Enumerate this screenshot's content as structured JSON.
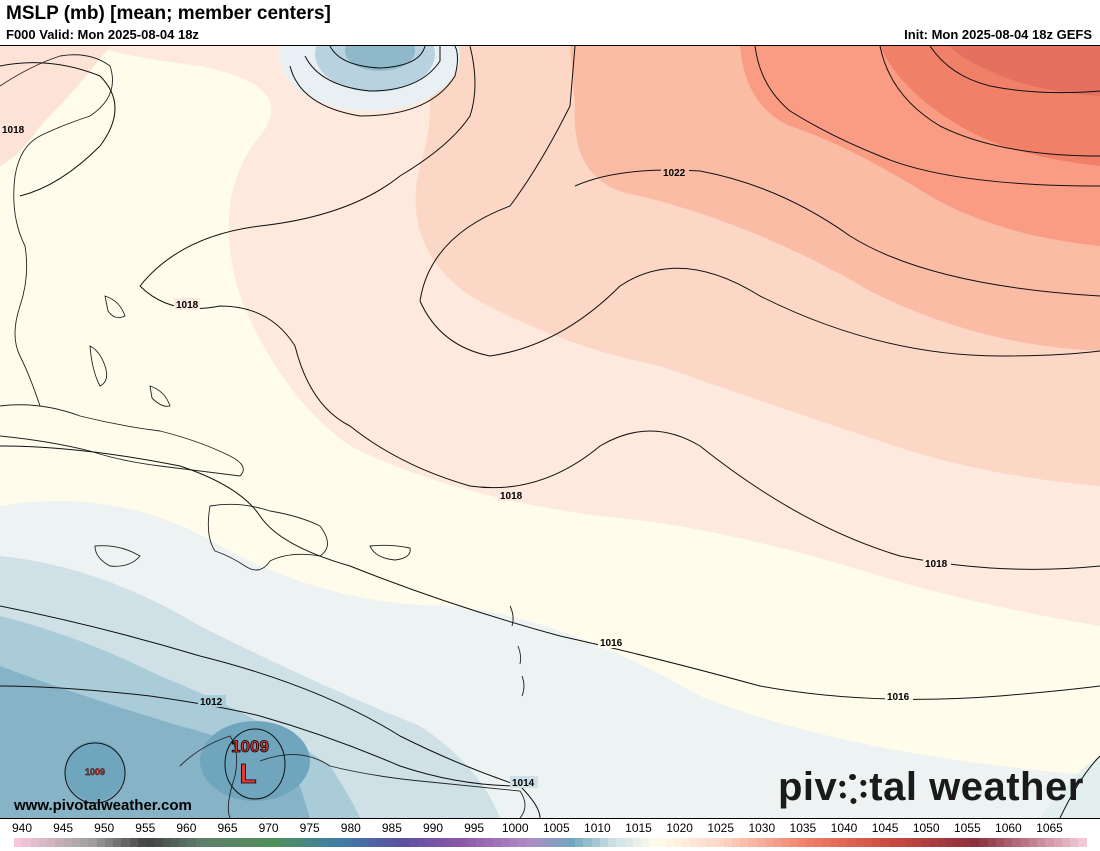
{
  "header": {
    "title": "MSLP (mb) [mean; member centers]",
    "valid": "F000 Valid: Mon 2025-08-04 18z",
    "init": "Init: Mon 2025-08-04 18z GEFS"
  },
  "map": {
    "isobar_labels": [
      "1018",
      "1018",
      "1022",
      "1018",
      "1018",
      "1016",
      "1016",
      "1012",
      "1014"
    ],
    "low_center": {
      "symbol": "L",
      "pressure": "1009"
    },
    "small_low_label": "1009",
    "colors": {
      "high": "#e4715f",
      "mid": "#fdd6c5",
      "neutral": "#fffdf0",
      "low": "#6fa6bd"
    }
  },
  "branding": {
    "website": "www.pivotalweather.com",
    "brand_left": "piv",
    "brand_right": "tal weather"
  },
  "colorbar": {
    "ticks": [
      "940",
      "945",
      "950",
      "955",
      "960",
      "965",
      "970",
      "975",
      "980",
      "985",
      "990",
      "995",
      "1000",
      "1005",
      "1010",
      "1015",
      "1020",
      "1025",
      "1030",
      "1035",
      "1040",
      "1045",
      "1050",
      "1055",
      "1060",
      "1065"
    ]
  }
}
